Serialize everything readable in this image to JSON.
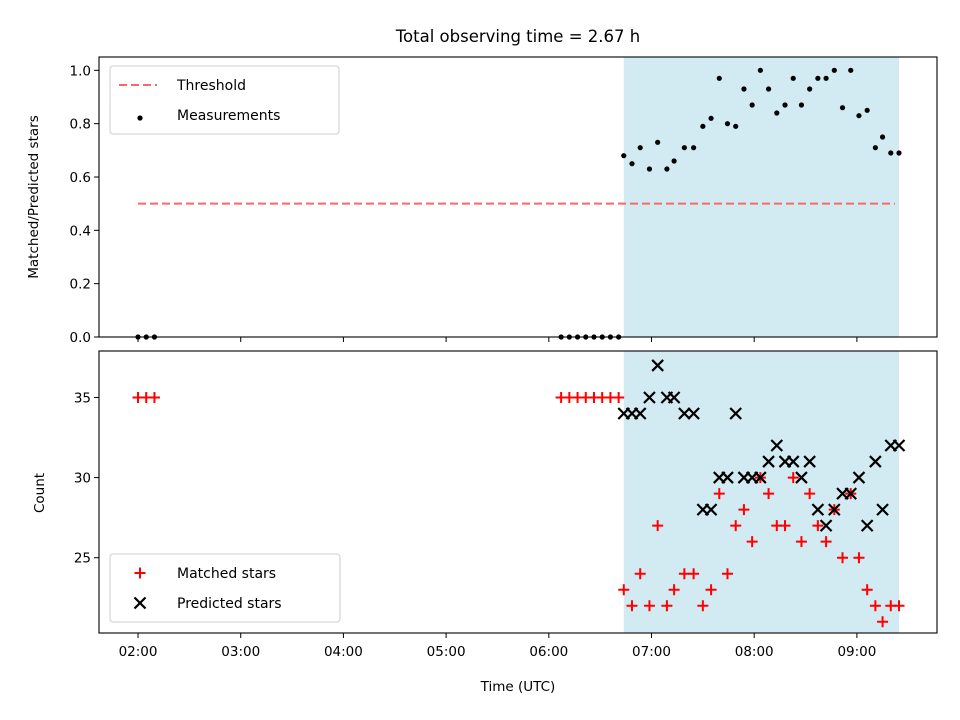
{
  "chart_data": {
    "title": "Total observing time = 2.67 h",
    "xlabel": "Time (UTC)",
    "xlim": [
      1.62,
      9.78
    ],
    "x_ticks": [
      {
        "value": 2,
        "label": "02:00"
      },
      {
        "value": 3,
        "label": "03:00"
      },
      {
        "value": 4,
        "label": "04:00"
      },
      {
        "value": 5,
        "label": "05:00"
      },
      {
        "value": 6,
        "label": "06:00"
      },
      {
        "value": 7,
        "label": "07:00"
      },
      {
        "value": 8,
        "label": "08:00"
      },
      {
        "value": 9,
        "label": "09:00"
      }
    ],
    "shaded_span": {
      "x_start": 6.73,
      "x_end": 9.41,
      "color": "#add8e6"
    },
    "panels": [
      {
        "type": "scatter",
        "ylabel": "Matched/Predicted stars",
        "ylim": [
          0,
          1.05
        ],
        "y_ticks": [
          {
            "value": 0.0,
            "label": "0.0"
          },
          {
            "value": 0.2,
            "label": "0.2"
          },
          {
            "value": 0.4,
            "label": "0.4"
          },
          {
            "value": 0.6,
            "label": "0.6"
          },
          {
            "value": 0.8,
            "label": "0.8"
          },
          {
            "value": 1.0,
            "label": "1.0"
          }
        ],
        "legend_position": "top-left",
        "threshold": {
          "name": "Threshold",
          "y": 0.5,
          "x_start": 2.0,
          "x_end": 9.37,
          "color": "#ff6666",
          "style": "dashed"
        },
        "series": [
          {
            "name": "Measurements",
            "marker": "dot",
            "color": "#000000",
            "x": [
              2.0,
              2.08,
              2.16,
              6.12,
              6.2,
              6.28,
              6.36,
              6.44,
              6.52,
              6.6,
              6.68,
              6.73,
              6.81,
              6.89,
              6.98,
              7.06,
              7.15,
              7.22,
              7.32,
              7.41,
              7.5,
              7.58,
              7.66,
              7.74,
              7.82,
              7.9,
              7.98,
              8.06,
              8.14,
              8.22,
              8.3,
              8.38,
              8.46,
              8.54,
              8.62,
              8.7,
              8.78,
              8.86,
              8.94,
              9.02,
              9.1,
              9.18,
              9.25,
              9.33,
              9.41
            ],
            "y": [
              0,
              0,
              0,
              0,
              0,
              0,
              0,
              0,
              0,
              0,
              0,
              0.68,
              0.65,
              0.71,
              0.63,
              0.73,
              0.63,
              0.66,
              0.71,
              0.71,
              0.79,
              0.82,
              0.97,
              0.8,
              0.79,
              0.93,
              0.87,
              1.0,
              0.93,
              0.84,
              0.87,
              0.97,
              0.87,
              0.93,
              0.97,
              0.97,
              1.0,
              0.86,
              1.0,
              0.83,
              0.85,
              0.71,
              0.75,
              0.69,
              0.69
            ]
          }
        ]
      },
      {
        "type": "scatter",
        "ylabel": "Count",
        "ylim": [
          20.3,
          37.9
        ],
        "y_ticks": [
          {
            "value": 25,
            "label": "25"
          },
          {
            "value": 30,
            "label": "30"
          },
          {
            "value": 35,
            "label": "35"
          }
        ],
        "legend_position": "bottom-left",
        "series": [
          {
            "name": "Matched stars",
            "marker": "plus",
            "color": "#ff0000",
            "x": [
              2.0,
              2.08,
              2.16,
              6.12,
              6.2,
              6.28,
              6.36,
              6.44,
              6.52,
              6.6,
              6.68,
              6.73,
              6.81,
              6.89,
              6.98,
              7.06,
              7.15,
              7.22,
              7.32,
              7.41,
              7.5,
              7.58,
              7.66,
              7.74,
              7.82,
              7.9,
              7.98,
              8.06,
              8.14,
              8.22,
              8.3,
              8.38,
              8.46,
              8.54,
              8.62,
              8.7,
              8.78,
              8.86,
              8.94,
              9.02,
              9.1,
              9.18,
              9.25,
              9.33,
              9.41
            ],
            "y": [
              35,
              35,
              35,
              35,
              35,
              35,
              35,
              35,
              35,
              35,
              35,
              23,
              22,
              24,
              22,
              27,
              22,
              23,
              24,
              24,
              22,
              23,
              29,
              24,
              27,
              28,
              26,
              30,
              29,
              27,
              27,
              30,
              26,
              29,
              27,
              26,
              28,
              25,
              29,
              25,
              23,
              22,
              21,
              22,
              22
            ]
          },
          {
            "name": "Predicted stars",
            "marker": "x",
            "color": "#000000",
            "x": [
              6.73,
              6.81,
              6.89,
              6.98,
              7.06,
              7.15,
              7.22,
              7.32,
              7.41,
              7.5,
              7.58,
              7.66,
              7.74,
              7.82,
              7.9,
              7.98,
              8.06,
              8.14,
              8.22,
              8.3,
              8.38,
              8.46,
              8.54,
              8.62,
              8.7,
              8.78,
              8.86,
              8.94,
              9.02,
              9.1,
              9.18,
              9.25,
              9.33,
              9.41
            ],
            "y": [
              34,
              34,
              34,
              35,
              37,
              35,
              35,
              34,
              34,
              28,
              28,
              30,
              30,
              34,
              30,
              30,
              30,
              31,
              32,
              31,
              31,
              30,
              31,
              28,
              27,
              28,
              29,
              29,
              30,
              27,
              31,
              28,
              32,
              32
            ]
          }
        ]
      }
    ]
  }
}
